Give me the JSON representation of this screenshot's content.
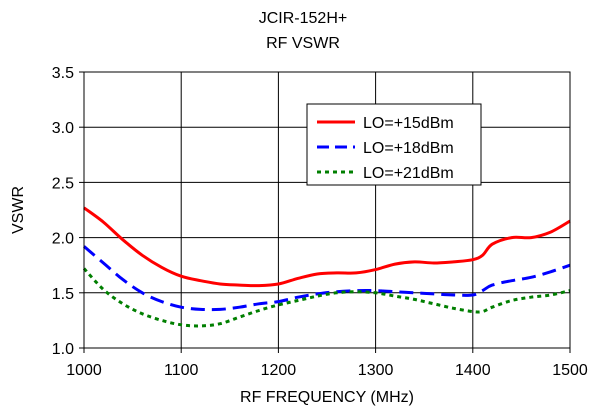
{
  "chart_data": {
    "type": "line",
    "title": "JCIR-152H+",
    "subtitle": "RF VSWR",
    "xlabel": "RF FREQUENCY (MHz)",
    "ylabel": "VSWR",
    "xlim": [
      1000,
      1500
    ],
    "ylim": [
      1.0,
      3.5
    ],
    "xticks": [
      1000,
      1100,
      1200,
      1300,
      1400,
      1500
    ],
    "xtick_labels": [
      "1000",
      "1100",
      "1200",
      "1300",
      "1400",
      "1500"
    ],
    "yticks": [
      1.0,
      1.5,
      2.0,
      2.5,
      3.0,
      3.5
    ],
    "ytick_labels": [
      "1.0",
      "1.5",
      "2.0",
      "2.5",
      "3.0",
      "3.5"
    ],
    "grid": true,
    "legend_position": "top-right",
    "series": [
      {
        "name": "LO=+15dBm",
        "color": "#ff0000",
        "style": "solid",
        "x": [
          1000,
          1020,
          1040,
          1060,
          1080,
          1100,
          1120,
          1140,
          1160,
          1180,
          1200,
          1220,
          1240,
          1260,
          1280,
          1300,
          1320,
          1340,
          1360,
          1380,
          1400,
          1410,
          1420,
          1440,
          1460,
          1480,
          1500
        ],
        "y": [
          2.27,
          2.14,
          1.98,
          1.84,
          1.73,
          1.65,
          1.61,
          1.58,
          1.57,
          1.565,
          1.58,
          1.63,
          1.67,
          1.68,
          1.68,
          1.71,
          1.76,
          1.78,
          1.77,
          1.78,
          1.8,
          1.84,
          1.94,
          2.0,
          2.0,
          2.05,
          2.15
        ]
      },
      {
        "name": "LO=+18dBm",
        "color": "#0000ff",
        "style": "dashed",
        "x": [
          1000,
          1020,
          1040,
          1060,
          1080,
          1100,
          1120,
          1140,
          1160,
          1180,
          1200,
          1220,
          1240,
          1260,
          1280,
          1300,
          1320,
          1340,
          1360,
          1380,
          1400,
          1410,
          1420,
          1440,
          1460,
          1480,
          1500
        ],
        "y": [
          1.92,
          1.77,
          1.62,
          1.5,
          1.42,
          1.37,
          1.35,
          1.35,
          1.37,
          1.4,
          1.42,
          1.46,
          1.49,
          1.51,
          1.52,
          1.52,
          1.51,
          1.5,
          1.49,
          1.48,
          1.48,
          1.52,
          1.57,
          1.61,
          1.64,
          1.69,
          1.75
        ]
      },
      {
        "name": "LO=+21dBm",
        "color": "#007f00",
        "style": "dotted",
        "x": [
          1000,
          1020,
          1040,
          1060,
          1080,
          1100,
          1120,
          1140,
          1160,
          1180,
          1200,
          1220,
          1240,
          1260,
          1280,
          1300,
          1320,
          1340,
          1360,
          1380,
          1400,
          1410,
          1420,
          1440,
          1460,
          1480,
          1500
        ],
        "y": [
          1.72,
          1.53,
          1.4,
          1.31,
          1.25,
          1.21,
          1.2,
          1.22,
          1.28,
          1.34,
          1.39,
          1.43,
          1.47,
          1.5,
          1.51,
          1.5,
          1.47,
          1.44,
          1.4,
          1.36,
          1.33,
          1.33,
          1.37,
          1.43,
          1.46,
          1.48,
          1.52
        ]
      }
    ]
  }
}
